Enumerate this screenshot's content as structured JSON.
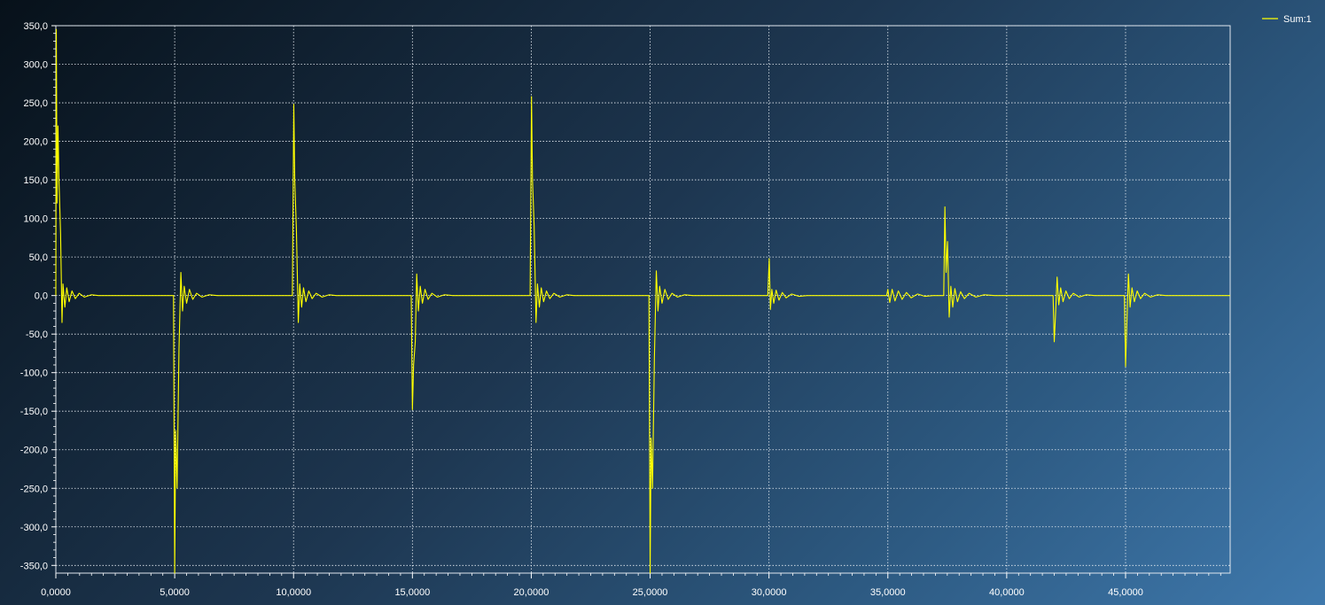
{
  "chart_data": {
    "type": "line",
    "title": "",
    "xlabel": "",
    "ylabel": "",
    "xlim": [
      0,
      49400
    ],
    "ylim": [
      -360,
      350
    ],
    "grid": true,
    "legend_position": "top-right",
    "x_ticks": [
      {
        "value": 0,
        "label": "0,0000"
      },
      {
        "value": 5000,
        "label": "5,0000"
      },
      {
        "value": 10000,
        "label": "10,0000"
      },
      {
        "value": 15000,
        "label": "15,0000"
      },
      {
        "value": 20000,
        "label": "20,0000"
      },
      {
        "value": 25000,
        "label": "25,0000"
      },
      {
        "value": 30000,
        "label": "30,0000"
      },
      {
        "value": 35000,
        "label": "35,0000"
      },
      {
        "value": 40000,
        "label": "40,0000"
      },
      {
        "value": 45000,
        "label": "45,0000"
      }
    ],
    "y_ticks": [
      {
        "value": 350,
        "label": "350,0"
      },
      {
        "value": 300,
        "label": "300,0"
      },
      {
        "value": 250,
        "label": "250,0"
      },
      {
        "value": 200,
        "label": "200,0"
      },
      {
        "value": 150,
        "label": "150,0"
      },
      {
        "value": 100,
        "label": "100,0"
      },
      {
        "value": 50,
        "label": "50,0"
      },
      {
        "value": 0,
        "label": "0,0"
      },
      {
        "value": -50,
        "label": "-50,0"
      },
      {
        "value": -100,
        "label": "-100,0"
      },
      {
        "value": -150,
        "label": "-150,0"
      },
      {
        "value": -200,
        "label": "-200,0"
      },
      {
        "value": -250,
        "label": "-250,0"
      },
      {
        "value": -300,
        "label": "-300,0"
      },
      {
        "value": -350,
        "label": "-350,0"
      }
    ],
    "series": [
      {
        "name": "Sum:1",
        "color": "#ffff00",
        "points": [
          {
            "x": 0,
            "y": 0
          },
          {
            "x": 20,
            "y": 345
          },
          {
            "x": 50,
            "y": 120
          },
          {
            "x": 90,
            "y": 220
          },
          {
            "x": 130,
            "y": 150
          },
          {
            "x": 200,
            "y": 80
          },
          {
            "x": 260,
            "y": -35
          },
          {
            "x": 300,
            "y": 15
          },
          {
            "x": 380,
            "y": -15
          },
          {
            "x": 460,
            "y": 10
          },
          {
            "x": 560,
            "y": -8
          },
          {
            "x": 680,
            "y": 6
          },
          {
            "x": 820,
            "y": -4
          },
          {
            "x": 980,
            "y": 3
          },
          {
            "x": 1200,
            "y": -2
          },
          {
            "x": 1500,
            "y": 1
          },
          {
            "x": 1800,
            "y": 0
          },
          {
            "x": 4950,
            "y": 0
          },
          {
            "x": 5000,
            "y": -360
          },
          {
            "x": 5040,
            "y": -175
          },
          {
            "x": 5100,
            "y": -250
          },
          {
            "x": 5180,
            "y": -70
          },
          {
            "x": 5260,
            "y": 30
          },
          {
            "x": 5330,
            "y": -20
          },
          {
            "x": 5400,
            "y": 12
          },
          {
            "x": 5500,
            "y": -10
          },
          {
            "x": 5620,
            "y": 8
          },
          {
            "x": 5760,
            "y": -5
          },
          {
            "x": 5920,
            "y": 3
          },
          {
            "x": 6150,
            "y": -2
          },
          {
            "x": 6450,
            "y": 1
          },
          {
            "x": 6800,
            "y": 0
          },
          {
            "x": 9950,
            "y": 0
          },
          {
            "x": 10010,
            "y": 248
          },
          {
            "x": 10050,
            "y": 150
          },
          {
            "x": 10120,
            "y": 85
          },
          {
            "x": 10200,
            "y": -35
          },
          {
            "x": 10260,
            "y": 15
          },
          {
            "x": 10340,
            "y": -15
          },
          {
            "x": 10420,
            "y": 10
          },
          {
            "x": 10520,
            "y": -8
          },
          {
            "x": 10640,
            "y": 6
          },
          {
            "x": 10780,
            "y": -4
          },
          {
            "x": 10950,
            "y": 3
          },
          {
            "x": 11200,
            "y": -2
          },
          {
            "x": 11500,
            "y": 1
          },
          {
            "x": 11800,
            "y": 0
          },
          {
            "x": 14950,
            "y": 0
          },
          {
            "x": 15000,
            "y": -148
          },
          {
            "x": 15050,
            "y": -90
          },
          {
            "x": 15120,
            "y": -60
          },
          {
            "x": 15180,
            "y": 28
          },
          {
            "x": 15250,
            "y": -20
          },
          {
            "x": 15330,
            "y": 12
          },
          {
            "x": 15420,
            "y": -10
          },
          {
            "x": 15530,
            "y": 8
          },
          {
            "x": 15660,
            "y": -5
          },
          {
            "x": 15820,
            "y": 3
          },
          {
            "x": 16050,
            "y": -2
          },
          {
            "x": 16350,
            "y": 1
          },
          {
            "x": 16700,
            "y": 0
          },
          {
            "x": 19950,
            "y": 0
          },
          {
            "x": 20010,
            "y": 258
          },
          {
            "x": 20050,
            "y": 150
          },
          {
            "x": 20120,
            "y": 90
          },
          {
            "x": 20200,
            "y": -35
          },
          {
            "x": 20260,
            "y": 15
          },
          {
            "x": 20340,
            "y": -15
          },
          {
            "x": 20420,
            "y": 10
          },
          {
            "x": 20520,
            "y": -8
          },
          {
            "x": 20640,
            "y": 6
          },
          {
            "x": 20780,
            "y": -4
          },
          {
            "x": 20950,
            "y": 3
          },
          {
            "x": 21200,
            "y": -2
          },
          {
            "x": 21500,
            "y": 1
          },
          {
            "x": 21800,
            "y": 0
          },
          {
            "x": 24950,
            "y": 0
          },
          {
            "x": 25000,
            "y": -360
          },
          {
            "x": 25040,
            "y": -185
          },
          {
            "x": 25100,
            "y": -250
          },
          {
            "x": 25180,
            "y": -80
          },
          {
            "x": 25260,
            "y": 32
          },
          {
            "x": 25330,
            "y": -20
          },
          {
            "x": 25400,
            "y": 12
          },
          {
            "x": 25500,
            "y": -10
          },
          {
            "x": 25620,
            "y": 8
          },
          {
            "x": 25760,
            "y": -5
          },
          {
            "x": 25920,
            "y": 3
          },
          {
            "x": 26150,
            "y": -2
          },
          {
            "x": 26450,
            "y": 1
          },
          {
            "x": 26800,
            "y": 0
          },
          {
            "x": 29950,
            "y": 0
          },
          {
            "x": 30010,
            "y": 48
          },
          {
            "x": 30060,
            "y": -18
          },
          {
            "x": 30120,
            "y": 8
          },
          {
            "x": 30200,
            "y": -10
          },
          {
            "x": 30300,
            "y": 7
          },
          {
            "x": 30420,
            "y": -6
          },
          {
            "x": 30560,
            "y": 4
          },
          {
            "x": 30720,
            "y": -3
          },
          {
            "x": 30950,
            "y": 2
          },
          {
            "x": 31250,
            "y": -1
          },
          {
            "x": 31600,
            "y": 0
          },
          {
            "x": 34950,
            "y": 0
          },
          {
            "x": 35000,
            "y": 8
          },
          {
            "x": 35080,
            "y": -9
          },
          {
            "x": 35180,
            "y": 8
          },
          {
            "x": 35300,
            "y": -7
          },
          {
            "x": 35440,
            "y": 6
          },
          {
            "x": 35600,
            "y": -5
          },
          {
            "x": 35780,
            "y": 4
          },
          {
            "x": 35980,
            "y": -3
          },
          {
            "x": 36250,
            "y": 2
          },
          {
            "x": 36550,
            "y": -1
          },
          {
            "x": 36900,
            "y": 0
          },
          {
            "x": 37350,
            "y": 0
          },
          {
            "x": 37400,
            "y": 115
          },
          {
            "x": 37450,
            "y": 30
          },
          {
            "x": 37510,
            "y": 70
          },
          {
            "x": 37580,
            "y": -28
          },
          {
            "x": 37650,
            "y": 12
          },
          {
            "x": 37730,
            "y": -15
          },
          {
            "x": 37820,
            "y": 9
          },
          {
            "x": 37930,
            "y": -8
          },
          {
            "x": 38060,
            "y": 5
          },
          {
            "x": 38220,
            "y": -4
          },
          {
            "x": 38420,
            "y": 3
          },
          {
            "x": 38700,
            "y": -2
          },
          {
            "x": 39050,
            "y": 1
          },
          {
            "x": 39500,
            "y": 0
          },
          {
            "x": 41950,
            "y": 0
          },
          {
            "x": 42000,
            "y": -60
          },
          {
            "x": 42060,
            "y": -20
          },
          {
            "x": 42120,
            "y": 24
          },
          {
            "x": 42190,
            "y": -12
          },
          {
            "x": 42270,
            "y": 10
          },
          {
            "x": 42370,
            "y": -8
          },
          {
            "x": 42490,
            "y": 6
          },
          {
            "x": 42630,
            "y": -4
          },
          {
            "x": 42800,
            "y": 3
          },
          {
            "x": 43050,
            "y": -2
          },
          {
            "x": 43350,
            "y": 1
          },
          {
            "x": 43700,
            "y": 0
          },
          {
            "x": 44950,
            "y": 0
          },
          {
            "x": 45000,
            "y": -92
          },
          {
            "x": 45060,
            "y": -30
          },
          {
            "x": 45120,
            "y": 28
          },
          {
            "x": 45190,
            "y": -15
          },
          {
            "x": 45270,
            "y": 10
          },
          {
            "x": 45370,
            "y": -8
          },
          {
            "x": 45490,
            "y": 6
          },
          {
            "x": 45630,
            "y": -4
          },
          {
            "x": 45800,
            "y": 3
          },
          {
            "x": 46050,
            "y": -2
          },
          {
            "x": 46350,
            "y": 1
          },
          {
            "x": 46700,
            "y": 0
          },
          {
            "x": 49400,
            "y": 0
          }
        ]
      }
    ]
  }
}
